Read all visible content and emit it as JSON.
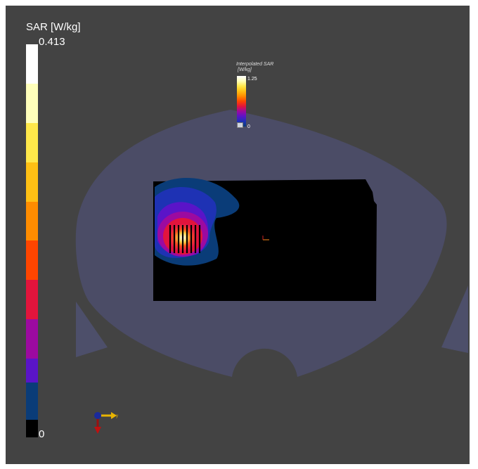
{
  "colorbar": {
    "title": "SAR [W/kg]",
    "max_label": "0.413",
    "min_label": "0",
    "colors_top_to_bottom": [
      "#ffffff",
      "#ffffbb",
      "#ffe84a",
      "#ffc014",
      "#ff8c00",
      "#ff4500",
      "#e2143c",
      "#9c0aa0",
      "#5a14c8",
      "#1e32b4",
      "#0a3c78",
      "#000000"
    ]
  },
  "mini_colorbar": {
    "title_line1": "Interpolated SAR",
    "title_line2": "[W/kg]",
    "max_label": "1.25",
    "min_label": "0"
  },
  "axes_indicator": {
    "label": "y"
  },
  "colors": {
    "background": "#434343",
    "phantom": "#4b4c66",
    "field_region": "#000000"
  }
}
